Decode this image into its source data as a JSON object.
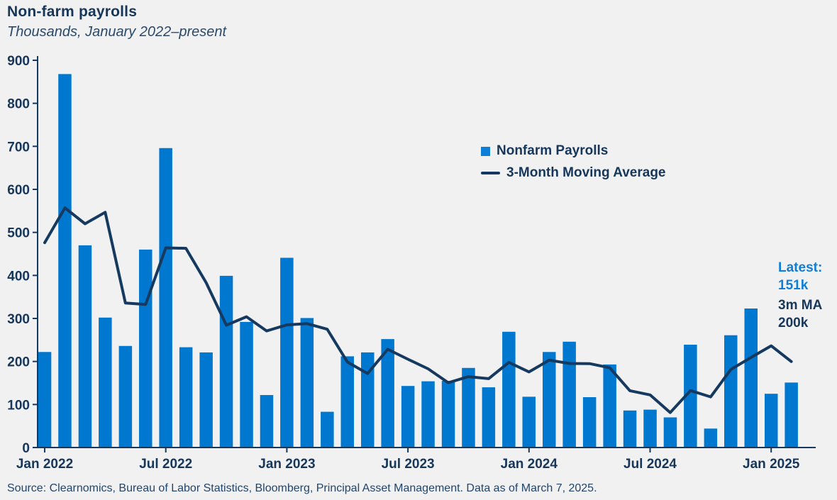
{
  "header": {
    "title": "Non-farm payrolls",
    "subtitle": "Thousands, January 2022–present"
  },
  "legend": {
    "items": [
      {
        "label": "Nonfarm Payrolls",
        "swatch": "square"
      },
      {
        "label": "3-Month Moving Average",
        "swatch": "line"
      }
    ]
  },
  "annotations": {
    "latest": "Latest:\n151k",
    "ma": "3m MA\n200k"
  },
  "footer": {
    "source": "Source: Clearnomics, Bureau of Labor Statistics, Bloomberg, Principal Asset Management. Data as of March 7, 2025."
  },
  "chart_data": {
    "type": "bar",
    "title": "Non-farm payrolls",
    "subtitle": "Thousands, January 2022–present",
    "xlabel": "",
    "ylabel": "Thousands",
    "ylim": [
      0,
      900
    ],
    "yticks": [
      0,
      100,
      200,
      300,
      400,
      500,
      600,
      700,
      800,
      900
    ],
    "grid": false,
    "legend_position": "upper-right",
    "categories": [
      "Jan 2022",
      "Feb 2022",
      "Mar 2022",
      "Apr 2022",
      "May 2022",
      "Jun 2022",
      "Jul 2022",
      "Aug 2022",
      "Sep 2022",
      "Oct 2022",
      "Nov 2022",
      "Dec 2022",
      "Jan 2023",
      "Feb 2023",
      "Mar 2023",
      "Apr 2023",
      "May 2023",
      "Jun 2023",
      "Jul 2023",
      "Aug 2023",
      "Sep 2023",
      "Oct 2023",
      "Nov 2023",
      "Dec 2023",
      "Jan 2024",
      "Feb 2024",
      "Mar 2024",
      "Apr 2024",
      "May 2024",
      "Jun 2024",
      "Jul 2024",
      "Aug 2024",
      "Sep 2024",
      "Oct 2024",
      "Nov 2024",
      "Dec 2024",
      "Jan 2025",
      "Feb 2025"
    ],
    "xticks": [
      "Jan 2022",
      "Jul 2022",
      "Jan 2023",
      "Jul 2023",
      "Jan 2024",
      "Jul 2024",
      "Jan 2025"
    ],
    "xtick_indices": [
      0,
      6,
      12,
      18,
      24,
      30,
      36
    ],
    "series": [
      {
        "name": "Nonfarm Payrolls",
        "type": "bar",
        "values": [
          222,
          868,
          470,
          302,
          236,
          460,
          696,
          233,
          221,
          399,
          292,
          122,
          441,
          301,
          83,
          212,
          221,
          252,
          143,
          154,
          155,
          185,
          140,
          269,
          118,
          222,
          246,
          117,
          193,
          86,
          88,
          70,
          239,
          44,
          261,
          323,
          125,
          151
        ]
      },
      {
        "name": "3-Month Moving Average",
        "type": "line",
        "values": [
          476,
          557,
          520,
          546.7,
          336,
          332.7,
          464,
          463,
          383.3,
          284.3,
          304,
          271,
          285,
          288,
          275,
          198.7,
          172,
          228.3,
          205.3,
          183,
          150.7,
          164.7,
          160,
          198,
          175.7,
          203,
          195.3,
          195,
          185.3,
          132,
          122.3,
          81.3,
          132.3,
          117.7,
          181.3,
          209.3,
          236.3,
          199.7
        ]
      }
    ],
    "colors": {
      "bar": "#0078cf",
      "line": "#16395f",
      "accent": "#0d7fd8",
      "text": "#16365a",
      "background": "#f1f1f2"
    }
  }
}
